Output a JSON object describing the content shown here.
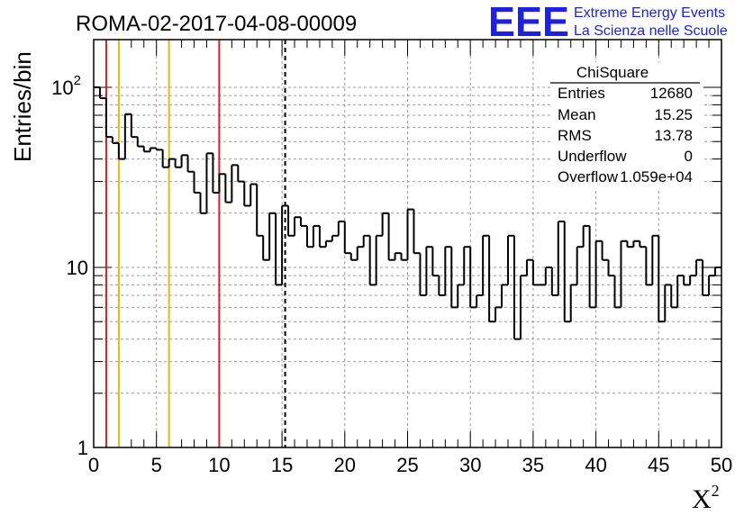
{
  "header": {
    "run_title": "ROMA-02-2017-04-08-00009",
    "logo_text": "EEE",
    "logo_line1": "Extreme Energy Events",
    "logo_line2": "La Scienza nelle Scuole",
    "logo_color": "#2020e0"
  },
  "stats": {
    "title": "ChiSquare",
    "rows": [
      {
        "label": "Entries",
        "value": "12680"
      },
      {
        "label": "Mean",
        "value": "15.25"
      },
      {
        "label": "RMS",
        "value": "13.78"
      },
      {
        "label": "Underflow",
        "value": "0"
      },
      {
        "label": "Overflow",
        "value": "1.059e+04"
      }
    ]
  },
  "chart_data": {
    "type": "histogram",
    "ylabel": "Entries/bin",
    "xlabel": "X",
    "xlabel_sup": "2",
    "xlim": [
      0,
      50
    ],
    "ylim": [
      1,
      200
    ],
    "log_y": true,
    "grid": true,
    "x_ticks": [
      0,
      5,
      10,
      15,
      20,
      25,
      30,
      35,
      40,
      45,
      50
    ],
    "x_tick_labels": [
      "0",
      "5",
      "10",
      "15",
      "20",
      "25",
      "30",
      "35",
      "40",
      "45",
      "50"
    ],
    "y_tick_labels": [
      {
        "value": 1,
        "base": "1",
        "exp": ""
      },
      {
        "value": 10,
        "base": "10",
        "exp": ""
      },
      {
        "value": 100,
        "base": "10",
        "exp": "2"
      }
    ],
    "bin_width": 0.5,
    "bin_start": 0,
    "values": [
      100,
      87,
      53,
      49,
      40,
      71,
      53,
      47,
      44,
      46,
      45,
      36,
      40,
      36,
      42,
      34,
      26,
      20,
      43,
      26,
      33,
      23,
      37,
      30,
      22,
      29,
      15,
      11,
      20,
      8,
      22,
      15,
      19,
      17,
      13,
      17,
      13,
      14,
      15,
      18,
      12,
      11,
      13,
      15,
      8,
      15,
      20,
      11,
      12,
      11,
      21,
      12,
      7,
      13,
      9,
      7,
      13,
      6,
      8,
      13,
      6,
      7,
      15,
      5,
      6,
      8,
      15,
      4,
      9,
      11,
      8,
      8,
      10,
      7,
      18,
      5,
      8,
      13,
      17,
      6,
      14,
      11,
      9,
      6,
      14,
      13,
      14,
      13,
      8,
      15,
      5,
      8,
      6,
      9,
      8,
      9,
      11,
      7,
      9,
      10
    ],
    "vertical_lines": [
      {
        "x": 1,
        "color": "#d42020",
        "style": "solid"
      },
      {
        "x": 2,
        "color": "#e8b80e",
        "style": "solid"
      },
      {
        "x": 6,
        "color": "#e8b80e",
        "style": "solid"
      },
      {
        "x": 10,
        "color": "#d42020",
        "style": "solid"
      },
      {
        "x": 15.25,
        "color": "#000000",
        "style": "dashed"
      }
    ]
  }
}
